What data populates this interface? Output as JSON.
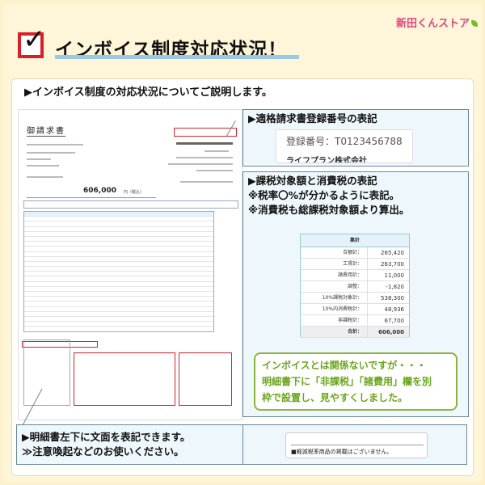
{
  "logo": {
    "text": "新田くんストア"
  },
  "header": {
    "title": "インボイス制度対応状況！",
    "icon": "red-checkbox-check-icon"
  },
  "intro": "▶インボイス制度の対応状況についてご説明します。",
  "invoice": {
    "heading": "御請求書",
    "total": "606,000",
    "total_unit": "円（税込）"
  },
  "callout_registration": {
    "title": "▶適格請求書登録番号の表記",
    "number": "登録番号：T0123456788",
    "company": "ライフプラン株式会社"
  },
  "callout_tax": {
    "lines": [
      "▶課税対象額と消費税の表記",
      "※税率〇%が分かるように表記。",
      "※消費税も総課税対象額より算出。"
    ],
    "summary": {
      "header": "集計",
      "rows": [
        {
          "label": "合額計：",
          "value": "265,420"
        },
        {
          "label": "工賃計：",
          "value": "263,700"
        },
        {
          "label": "諸費用計：",
          "value": "11,000"
        },
        {
          "label": "調整：",
          "value": "-1,820"
        },
        {
          "label": "10%課税対象計：",
          "value": "538,300"
        },
        {
          "label": "10%内消費税計：",
          "value": "48,936"
        },
        {
          "label": "非課税計：",
          "value": "67,700"
        },
        {
          "label": "合計：",
          "value": "606,000"
        }
      ]
    }
  },
  "green_note": [
    "インボイスとは関係ないですが・・・",
    "明細書下に「非課税」「諸費用」欄を別",
    "枠で設置し、見やすくしました。"
  ],
  "callout_bottom_left": [
    "▶明細書左下に文面を表記できます。",
    "≫注意喚起などのお使いください。"
  ],
  "callout_bottom_right": {
    "note": "■軽減税率商品の掲載はございません。"
  },
  "colors": {
    "background": "#fdf0cc",
    "accent_red": "#d8202a",
    "callout_bg": "#eef7fc",
    "green": "#6aa51c",
    "underline": "#9cc8e8"
  }
}
